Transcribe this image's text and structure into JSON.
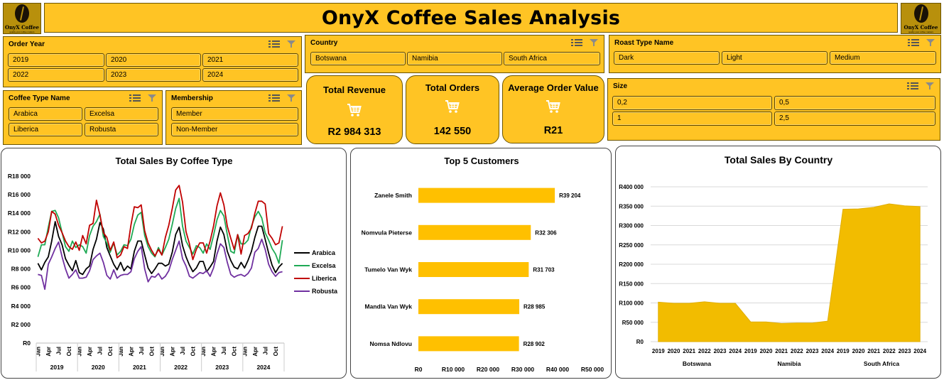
{
  "header": {
    "title": "OnyX Coffee Sales Analysis",
    "logo_text": "OnyX Coffee",
    "logo_tagline": "quality your coffee matters"
  },
  "slicers": {
    "order_year": {
      "title": "Order Year",
      "items": [
        "2019",
        "2020",
        "2021",
        "2022",
        "2023",
        "2024"
      ]
    },
    "country": {
      "title": "Country",
      "items": [
        "Botswana",
        "Namibia",
        "South Africa"
      ]
    },
    "roast_type": {
      "title": "Roast Type Name",
      "items": [
        "Dark",
        "Light",
        "Medium"
      ]
    },
    "coffee_type": {
      "title": "Coffee Type Name",
      "items": [
        "Arabica",
        "Excelsa",
        "Liberica",
        "Robusta"
      ]
    },
    "membership": {
      "title": "Membership",
      "items": [
        "Member",
        "Non-Member"
      ]
    },
    "size": {
      "title": "Size",
      "items": [
        "0,2",
        "0,5",
        "1",
        "2,5"
      ]
    }
  },
  "kpis": {
    "revenue": {
      "label": "Total  Revenue",
      "value": "R2 984 313"
    },
    "orders": {
      "label": "Total Orders",
      "value": "142 550"
    },
    "aov": {
      "label": "Average Order Value",
      "value": "R21"
    }
  },
  "colors": {
    "accent": "#FFC424",
    "bar": "#FFC000",
    "area": "#F2BC00",
    "arabica": "#000000",
    "excelsa": "#1FAA55",
    "liberica": "#C00000",
    "robusta": "#7030A0"
  },
  "chart_data": [
    {
      "type": "line",
      "title": "Total Sales By Coffee Type",
      "y_ticks": [
        "R18 000",
        "R16 000",
        "R14 000",
        "R12 000",
        "R10 000",
        "R8 000",
        "R6 000",
        "R4 000",
        "R2 000",
        "R0"
      ],
      "ylim": [
        0,
        18000
      ],
      "month_ticks": [
        "Jan",
        "Apr",
        "Jul",
        "Oct"
      ],
      "years": [
        "2019",
        "2020",
        "2021",
        "2022",
        "2023",
        "2024"
      ],
      "legend_position": "right",
      "series": [
        {
          "name": "Arabica",
          "color": "#000000",
          "values": [
            8600,
            7900,
            8700,
            9300,
            11000,
            13100,
            11500,
            10600,
            9100,
            8400,
            7800,
            8900,
            7600,
            7400,
            8000,
            8300,
            10100,
            11200,
            13000,
            12300,
            10300,
            9400,
            8500,
            7900,
            8700,
            7800,
            8300,
            8000,
            9900,
            11000,
            11000,
            9500,
            8100,
            7500,
            8000,
            8600,
            8600,
            8300,
            8500,
            9800,
            11700,
            12500,
            10500,
            9300,
            8400,
            7700,
            8100,
            8800,
            8800,
            7700,
            8200,
            8800,
            11000,
            12500,
            11700,
            9900,
            8900,
            8200,
            8000,
            8700,
            8100,
            8900,
            9900,
            11400,
            12600,
            12600,
            11200,
            9700,
            8400,
            7600,
            8200,
            8600
          ]
        },
        {
          "name": "Excelsa",
          "color": "#1FAA55",
          "values": [
            9300,
            10600,
            10600,
            12500,
            14200,
            14300,
            13500,
            11900,
            10400,
            9900,
            11000,
            10300,
            10600,
            10400,
            9700,
            11600,
            12600,
            13100,
            13900,
            11500,
            10800,
            9800,
            10800,
            9500,
            9900,
            10600,
            10500,
            11200,
            12800,
            13800,
            14100,
            11600,
            10400,
            9700,
            9300,
            10300,
            9500,
            10300,
            11200,
            12800,
            14500,
            15600,
            12600,
            11000,
            10300,
            9600,
            10500,
            10300,
            9700,
            10700,
            10100,
            11600,
            13300,
            14300,
            13700,
            11700,
            9900,
            9700,
            11700,
            10700,
            10700,
            11100,
            12600,
            13600,
            14200,
            13500,
            11900,
            11100,
            10200,
            9600,
            8600,
            11100
          ]
        },
        {
          "name": "Liberica",
          "color": "#C00000",
          "values": [
            11300,
            10800,
            11000,
            12000,
            14200,
            13900,
            12700,
            11900,
            11000,
            10400,
            10100,
            10900,
            10000,
            11600,
            10700,
            12700,
            12900,
            15400,
            13800,
            11900,
            11400,
            10000,
            10900,
            9200,
            9500,
            10400,
            10200,
            12700,
            14700,
            14600,
            14900,
            12100,
            10800,
            10000,
            9400,
            10100,
            9500,
            11400,
            12700,
            14500,
            16500,
            17000,
            15200,
            12000,
            10700,
            9000,
            10100,
            10800,
            10800,
            9700,
            11000,
            12600,
            14800,
            16200,
            14900,
            12600,
            11300,
            10100,
            11700,
            9600,
            11600,
            11800,
            12400,
            14000,
            15300,
            15300,
            15000,
            11800,
            11300,
            10600,
            10800,
            12600
          ]
        },
        {
          "name": "Robusta",
          "color": "#7030A0",
          "values": [
            7400,
            7300,
            5800,
            8500,
            9300,
            10200,
            10900,
            9300,
            8000,
            7000,
            7400,
            7900,
            7000,
            7000,
            7100,
            7800,
            9000,
            9400,
            9700,
            8700,
            7300,
            6900,
            7900,
            7000,
            7300,
            7400,
            7400,
            7700,
            9100,
            9900,
            10400,
            8000,
            6600,
            7200,
            7100,
            7500,
            6900,
            7200,
            7800,
            9000,
            10000,
            11000,
            9100,
            8300,
            7200,
            7000,
            7300,
            7600,
            7500,
            7800,
            7200,
            8100,
            9600,
            10700,
            10300,
            8700,
            7400,
            7100,
            7300,
            7400,
            7200,
            7500,
            8100,
            9800,
            10200,
            11200,
            10100,
            8500,
            7700,
            7200,
            7600,
            7700
          ]
        }
      ]
    },
    {
      "type": "bar",
      "title": "Top 5 Customers",
      "orientation": "horizontal",
      "categories": [
        "Zanele Smith",
        "Nomvula Pieterse",
        "Tumelo Van Wyk",
        "Mandla Van Wyk",
        "Nomsa Ndlovu"
      ],
      "values": [
        39204,
        32306,
        31703,
        28985,
        28902
      ],
      "data_labels": [
        "R39 204",
        "R32 306",
        "R31 703",
        "R28 985",
        "R28 902"
      ],
      "x_ticks": [
        "R0",
        "R10 000",
        "R20 000",
        "R30 000",
        "R40 000",
        "R50 000"
      ],
      "xlim": [
        0,
        50000
      ]
    },
    {
      "type": "area",
      "title": "Total Sales By  Country",
      "y_ticks": [
        "R400 000",
        "R350 000",
        "R300 000",
        "R250 000",
        "R200 000",
        "R150 000",
        "R100 000",
        "R50 000",
        "R0"
      ],
      "ylim": [
        0,
        400000
      ],
      "groups": [
        "Botswana",
        "Namibia",
        "South Africa"
      ],
      "x": [
        "2019",
        "2020",
        "2021",
        "2022",
        "2023",
        "2024",
        "2019",
        "2020",
        "2021",
        "2022",
        "2023",
        "2024",
        "2019",
        "2020",
        "2021",
        "2022",
        "2023",
        "2024"
      ],
      "values": [
        102000,
        99000,
        99000,
        103000,
        99000,
        99000,
        51000,
        51000,
        47000,
        48000,
        48000,
        53000,
        342000,
        343000,
        347000,
        356000,
        351000,
        349000
      ]
    }
  ]
}
